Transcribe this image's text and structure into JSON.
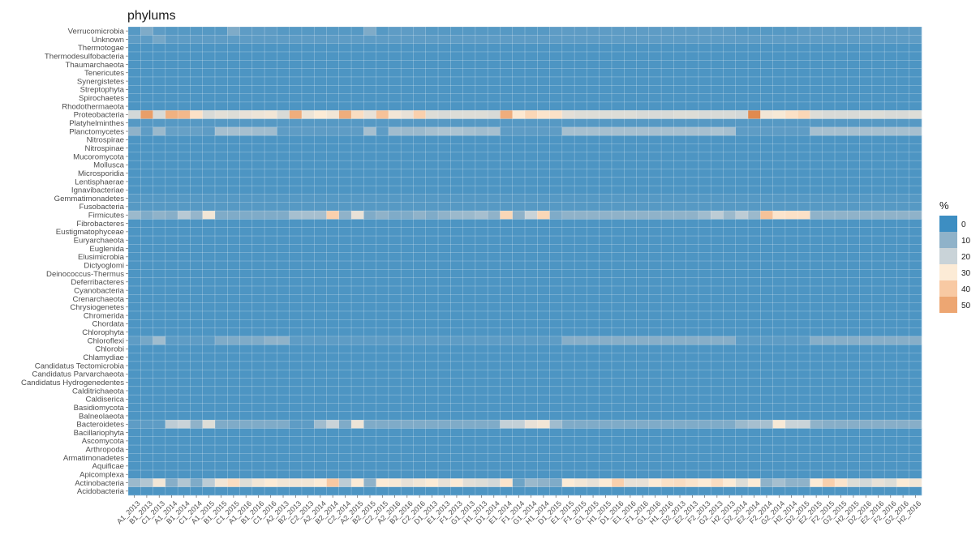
{
  "chart_data": {
    "type": "heatmap",
    "title": "phylums",
    "xlabel": "",
    "ylabel": "",
    "legend": {
      "title": "%",
      "placement": "right",
      "breaks": [
        0,
        10,
        20,
        30,
        40,
        50
      ],
      "colors": [
        "#3D8EC2",
        "#8FB2C9",
        "#C9D3D8",
        "#FCEBD6",
        "#F8C9A3",
        "#EDA672"
      ]
    },
    "grid": true,
    "x": [
      "A1_2013",
      "B1_2013",
      "C1_2013",
      "A1_2014",
      "B1_2014",
      "C1_2014",
      "A1_2015",
      "B1_2015",
      "C1_2015",
      "A1_2016",
      "B1_2016",
      "C1_2016",
      "A2_2013",
      "B2_2013",
      "C2_2013",
      "A2_2014",
      "B2_2014",
      "C2_2014",
      "A2_2015",
      "B2_2015",
      "C2_2015",
      "A2_2016",
      "B2_2016",
      "C2_2016",
      "D1_2013",
      "E1_2013",
      "F1_2013",
      "G1_2013",
      "H1_2013",
      "D1_2014",
      "E1_2014",
      "F1_2014",
      "G1_2014",
      "H1_2014",
      "D1_2015",
      "E1_2015",
      "F1_2015",
      "G1_2015",
      "H1_2015",
      "D1_2016",
      "E1_2016",
      "F1_2016",
      "G1_2016",
      "H1_2016",
      "D2_2013",
      "E2_2013",
      "F2_2013",
      "G2_2013",
      "H2_2013",
      "D2_2014",
      "E2_2014",
      "F2_2014",
      "G2_2014",
      "H2_2014",
      "D2_2015",
      "E2_2015",
      "F2_2015",
      "G2_2015",
      "H2_2015",
      "D2_2016",
      "E2_2016",
      "F2_2016",
      "G2_2016",
      "H2_2016"
    ],
    "y": [
      "Verrucomicrobia",
      "Unknown",
      "Thermotogae",
      "Thermodesulfobacteria",
      "Thaumarchaeota",
      "Tenericutes",
      "Synergistetes",
      "Streptophyta",
      "Spirochaetes",
      "Rhodothermaeota",
      "Proteobacteria",
      "Platyhelminthes",
      "Planctomycetes",
      "Nitrospirae",
      "Nitrospinae",
      "Mucoromycota",
      "Mollusca",
      "Microsporidia",
      "Lentisphaerae",
      "Ignavibacteriae",
      "Gemmatimonadetes",
      "Fusobacteria",
      "Firmicutes",
      "Fibrobacteres",
      "Eustigmatophyceae",
      "Euryarchaeota",
      "Euglenida",
      "Elusimicrobia",
      "Dictyoglomi",
      "Deinococcus-Thermus",
      "Deferribacteres",
      "Cyanobacteria",
      "Crenarchaeota",
      "Chrysiogenetes",
      "Chromerida",
      "Chordata",
      "Chlorophyta",
      "Chloroflexi",
      "Chlorobi",
      "Chlamydiae",
      "Candidatus Tectomicrobia",
      "Candidatus Parvarchaeota",
      "Candidatus Hydrogenedentes",
      "Calditrichaeota",
      "Caldiserica",
      "Basidiomycota",
      "Balneolaeota",
      "Bacteroidetes",
      "Bacillariophyta",
      "Ascomycota",
      "Arthropoda",
      "Armatimonadetes",
      "Aquificae",
      "Apicomplexa",
      "Actinobacteria",
      "Acidobacteria"
    ],
    "rows": {
      "Verrucomicrobia": [
        3,
        8,
        4,
        3,
        3,
        3,
        3,
        3,
        8,
        4,
        4,
        4,
        3,
        3,
        3,
        3,
        3,
        3,
        3,
        8,
        3,
        4,
        4,
        4,
        3,
        3,
        3,
        3,
        3,
        3,
        3,
        3,
        3,
        3,
        4,
        4,
        4,
        4,
        4,
        4,
        4,
        4,
        4,
        4,
        4,
        4,
        4,
        4,
        4,
        3,
        3,
        3,
        3,
        3,
        4,
        4,
        4,
        4,
        4,
        4,
        4,
        4,
        4,
        4
      ],
      "Unknown": [
        4,
        4,
        7,
        4,
        4,
        4,
        4,
        4,
        4,
        4,
        4,
        4,
        4,
        4,
        4,
        4,
        4,
        4,
        4,
        4,
        4,
        4,
        4,
        4,
        4,
        4,
        4,
        4,
        4,
        4,
        4,
        4,
        4,
        4,
        4,
        4,
        4,
        4,
        4,
        4,
        4,
        4,
        4,
        4,
        4,
        4,
        4,
        4,
        4,
        4,
        4,
        4,
        4,
        4,
        4,
        4,
        4,
        4,
        4,
        4,
        4,
        4,
        4,
        4
      ],
      "Proteobacteria": [
        22,
        52,
        23,
        47,
        45,
        33,
        23,
        25,
        24,
        26,
        27,
        28,
        23,
        48,
        27,
        30,
        28,
        48,
        34,
        26,
        42,
        28,
        26,
        38,
        24,
        23,
        24,
        24,
        24,
        23,
        48,
        31,
        36,
        32,
        33,
        25,
        24,
        24,
        24,
        24,
        24,
        23,
        23,
        23,
        24,
        24,
        23,
        23,
        23,
        22,
        57,
        28,
        29,
        33,
        36,
        24,
        23,
        23,
        23,
        24,
        24,
        23,
        23,
        24
      ],
      "Platyhelminthes": [
        3,
        3,
        3,
        3,
        3,
        3,
        3,
        3,
        3,
        3,
        3,
        3,
        3,
        3,
        3,
        3,
        3,
        3,
        3,
        3,
        3,
        3,
        3,
        3,
        3,
        3,
        3,
        3,
        3,
        3,
        3,
        3,
        3,
        3,
        3,
        3,
        3,
        3,
        3,
        3,
        3,
        3,
        3,
        3,
        3,
        3,
        3,
        3,
        3,
        3,
        3,
        3,
        3,
        3,
        3,
        3,
        3,
        3,
        3,
        3,
        3,
        3,
        3,
        3
      ],
      "Planctomycetes": [
        10,
        4,
        12,
        5,
        5,
        5,
        4,
        14,
        14,
        14,
        13,
        13,
        4,
        4,
        4,
        4,
        4,
        4,
        4,
        14,
        4,
        13,
        12,
        12,
        14,
        15,
        15,
        14,
        13,
        14,
        4,
        4,
        4,
        4,
        4,
        14,
        14,
        14,
        14,
        14,
        14,
        14,
        14,
        14,
        14,
        14,
        14,
        15,
        14,
        4,
        4,
        4,
        4,
        4,
        4,
        14,
        14,
        14,
        14,
        14,
        14,
        14,
        14,
        14
      ],
      "Gemmatimonadetes": [
        3,
        3,
        3,
        3,
        3,
        3,
        3,
        3,
        3,
        3,
        3,
        3,
        3,
        3,
        3,
        3,
        3,
        3,
        3,
        3,
        3,
        3,
        3,
        3,
        3,
        3,
        3,
        3,
        3,
        3,
        3,
        3,
        3,
        3,
        3,
        3,
        3,
        3,
        3,
        3,
        3,
        3,
        3,
        3,
        3,
        3,
        3,
        3,
        3,
        3,
        3,
        3,
        3,
        3,
        3,
        3,
        3,
        3,
        3,
        3,
        3,
        3,
        3,
        3
      ],
      "Fusobacteria": [
        3,
        3,
        3,
        3,
        3,
        3,
        3,
        3,
        3,
        3,
        3,
        3,
        3,
        3,
        3,
        3,
        3,
        3,
        3,
        3,
        3,
        3,
        3,
        3,
        3,
        3,
        3,
        3,
        3,
        3,
        3,
        3,
        3,
        3,
        3,
        3,
        3,
        3,
        3,
        3,
        3,
        3,
        3,
        3,
        3,
        3,
        3,
        3,
        3,
        3,
        3,
        3,
        3,
        3,
        3,
        3,
        3,
        3,
        3,
        3,
        3,
        3,
        3,
        3
      ],
      "Firmicutes": [
        12,
        8,
        10,
        9,
        17,
        11,
        28,
        8,
        8,
        8,
        8,
        8,
        8,
        14,
        14,
        14,
        38,
        10,
        26,
        8,
        10,
        8,
        8,
        10,
        8,
        10,
        12,
        12,
        14,
        10,
        36,
        10,
        20,
        36,
        8,
        10,
        10,
        10,
        10,
        10,
        10,
        10,
        10,
        10,
        10,
        10,
        13,
        18,
        12,
        18,
        12,
        42,
        32,
        33,
        33,
        10,
        10,
        10,
        10,
        10,
        10,
        10,
        10,
        10
      ],
      "Chloroflexi": [
        4,
        7,
        13,
        4,
        4,
        4,
        4,
        8,
        8,
        8,
        8,
        10,
        10,
        4,
        4,
        4,
        4,
        4,
        4,
        4,
        4,
        4,
        4,
        4,
        4,
        4,
        4,
        4,
        4,
        4,
        4,
        4,
        4,
        4,
        4,
        9,
        9,
        9,
        9,
        9,
        9,
        9,
        9,
        9,
        9,
        9,
        9,
        9,
        9,
        4,
        4,
        4,
        4,
        4,
        4,
        9,
        9,
        9,
        9,
        9,
        9,
        9,
        9,
        9
      ],
      "Bacteroidetes": [
        4,
        4,
        4,
        18,
        20,
        10,
        24,
        8,
        8,
        8,
        8,
        8,
        8,
        4,
        4,
        13,
        20,
        8,
        27,
        8,
        8,
        8,
        8,
        8,
        8,
        8,
        8,
        8,
        8,
        8,
        19,
        19,
        26,
        28,
        13,
        8,
        8,
        8,
        8,
        8,
        8,
        8,
        8,
        8,
        8,
        8,
        8,
        8,
        8,
        12,
        14,
        14,
        29,
        20,
        20,
        10,
        9,
        9,
        9,
        9,
        9,
        9,
        9,
        9
      ],
      "Actinobacteria": [
        12,
        16,
        28,
        9,
        16,
        8,
        18,
        28,
        34,
        24,
        28,
        30,
        28,
        28,
        28,
        30,
        40,
        18,
        30,
        10,
        30,
        29,
        26,
        28,
        30,
        26,
        30,
        25,
        24,
        22,
        32,
        6,
        12,
        10,
        8,
        30,
        28,
        26,
        30,
        38,
        26,
        26,
        30,
        33,
        34,
        32,
        30,
        34,
        30,
        24,
        30,
        10,
        14,
        10,
        10,
        30,
        38,
        32,
        24,
        22,
        26,
        24,
        30,
        28
      ]
    },
    "default_value": 2
  }
}
